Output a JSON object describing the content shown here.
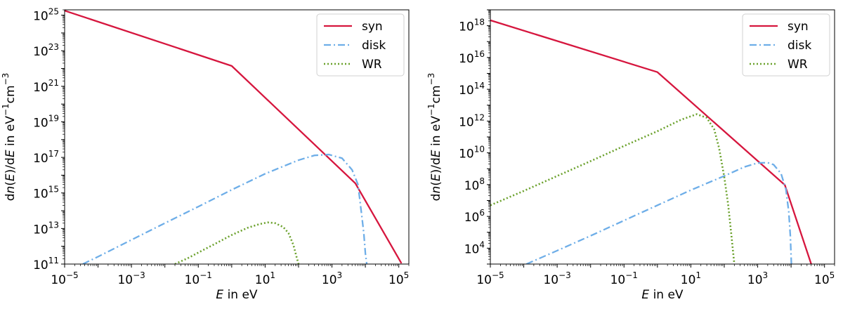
{
  "chart_data": [
    {
      "type": "line",
      "xscale": "log",
      "yscale": "log",
      "xlim": [
        1e-05,
        200000.0
      ],
      "ylim": [
        100000000000.0,
        2e+25
      ],
      "xlabel_var": "E",
      "xlabel_rest": " in eV",
      "ylabel_parts": [
        "d",
        "n",
        "(",
        "E",
        ")/d",
        "E",
        " in eV",
        "−1",
        "cm",
        "−3"
      ],
      "xticks": [
        {
          "base": "10",
          "exp": "−5",
          "value": 1e-05
        },
        {
          "base": "10",
          "exp": "−3",
          "value": 0.001
        },
        {
          "base": "10",
          "exp": "−1",
          "value": 0.1
        },
        {
          "base": "10",
          "exp": "1",
          "value": 10.0
        },
        {
          "base": "10",
          "exp": "3",
          "value": 1000.0
        },
        {
          "base": "10",
          "exp": "5",
          "value": 100000.0
        }
      ],
      "yticks": [
        {
          "base": "10",
          "exp": "11",
          "value": 100000000000.0
        },
        {
          "base": "10",
          "exp": "13",
          "value": 10000000000000.0
        },
        {
          "base": "10",
          "exp": "15",
          "value": 1000000000000000.0
        },
        {
          "base": "10",
          "exp": "17",
          "value": 1e+17
        },
        {
          "base": "10",
          "exp": "19",
          "value": 1e+19
        },
        {
          "base": "10",
          "exp": "21",
          "value": 1e+21
        },
        {
          "base": "10",
          "exp": "23",
          "value": 1e+23
        },
        {
          "base": "10",
          "exp": "25",
          "value": 1e+25
        }
      ],
      "legend": "top-right",
      "series": [
        {
          "name": "syn",
          "color": "#d6163e",
          "dash": "solid",
          "points": [
            [
              1e-05,
              1.8e+25
            ],
            [
              1.0,
              1.4e+22
            ],
            [
              5000.0,
              3500000000000000.0
            ],
            [
              120000.0,
              110000000000.0
            ]
          ]
        },
        {
          "name": "disk",
          "color": "#6eaee8",
          "dash": "dashdot",
          "points": [
            [
              3.5e-05,
              100000000000.0
            ],
            [
              0.0001,
              260000000000.0
            ],
            [
              0.001,
              2300000000000.0
            ],
            [
              0.01,
              20000000000000.0
            ],
            [
              0.1,
              170000000000000.0
            ],
            [
              1.0,
              1500000000000000.0
            ],
            [
              10,
              1.2e+16
            ],
            [
              100,
              7e+16
            ],
            [
              300,
              1.3e+17
            ],
            [
              800,
              1.45e+17
            ],
            [
              2000,
              9e+16
            ],
            [
              4000,
              2e+16
            ],
            [
              6000,
              3000000000000000.0
            ],
            [
              8000,
              35000000000000.0
            ],
            [
              9000,
              5000000000000.0
            ],
            [
              10000.0,
              400000000000.0
            ],
            [
              11000.0,
              100000000000.0
            ]
          ]
        },
        {
          "name": "WR",
          "color": "#6ba12c",
          "dash": "dotted",
          "points": [
            [
              0.02,
              100000000000.0
            ],
            [
              0.05,
              220000000000.0
            ],
            [
              0.1,
              440000000000.0
            ],
            [
              0.3,
              1300000000000.0
            ],
            [
              1.0,
              4300000000000.0
            ],
            [
              3.0,
              11000000000000.0
            ],
            [
              7.0,
              18000000000000.0
            ],
            [
              12,
              22000000000000.0
            ],
            [
              20,
              20000000000000.0
            ],
            [
              35,
              12000000000000.0
            ],
            [
              50,
              5500000000000.0
            ],
            [
              70,
              1200000000000.0
            ],
            [
              85,
              300000000000.0
            ],
            [
              100,
              100000000000.0
            ]
          ]
        }
      ]
    },
    {
      "type": "line",
      "xscale": "log",
      "yscale": "log",
      "xlim": [
        1e-05,
        200000.0
      ],
      "ylim": [
        1000.0,
        1e+19
      ],
      "xlabel_var": "E",
      "xlabel_rest": " in eV",
      "ylabel_parts": [
        "d",
        "n",
        "(",
        "E",
        ")/d",
        "E",
        " in eV",
        "−1",
        "cm",
        "−3"
      ],
      "xticks": [
        {
          "base": "10",
          "exp": "−5",
          "value": 1e-05
        },
        {
          "base": "10",
          "exp": "−3",
          "value": 0.001
        },
        {
          "base": "10",
          "exp": "−1",
          "value": 0.1
        },
        {
          "base": "10",
          "exp": "1",
          "value": 10.0
        },
        {
          "base": "10",
          "exp": "3",
          "value": 1000.0
        },
        {
          "base": "10",
          "exp": "5",
          "value": 100000.0
        }
      ],
      "yticks": [
        {
          "base": "10",
          "exp": "4",
          "value": 10000.0
        },
        {
          "base": "10",
          "exp": "6",
          "value": 1000000.0
        },
        {
          "base": "10",
          "exp": "8",
          "value": 100000000.0
        },
        {
          "base": "10",
          "exp": "10",
          "value": 10000000000.0
        },
        {
          "base": "10",
          "exp": "12",
          "value": 1000000000000.0
        },
        {
          "base": "10",
          "exp": "14",
          "value": 100000000000000.0
        },
        {
          "base": "10",
          "exp": "16",
          "value": 1e+16
        },
        {
          "base": "10",
          "exp": "18",
          "value": 1e+18
        }
      ],
      "legend": "top-right",
      "series": [
        {
          "name": "syn",
          "color": "#d6163e",
          "dash": "solid",
          "points": [
            [
              1e-05,
              2.2e+18
            ],
            [
              1.0,
              1200000000000000.0
            ],
            [
              6500.0,
              95000000.0
            ],
            [
              40000.0,
              1000.0
            ]
          ]
        },
        {
          "name": "disk",
          "color": "#6eaee8",
          "dash": "dashdot",
          "points": [
            [
              0.00012,
              1000.0
            ],
            [
              0.001,
              7000.0
            ],
            [
              0.01,
              60000.0
            ],
            [
              0.1,
              550000.0
            ],
            [
              1.0,
              5000000.0
            ],
            [
              10,
              45000000.0
            ],
            [
              100,
              350000000.0
            ],
            [
              400,
              1300000000.0
            ],
            [
              1000,
              2300000000.0
            ],
            [
              2000,
              2400000000.0
            ],
            [
              3000,
              1800000000.0
            ],
            [
              5000,
              500000000.0
            ],
            [
              7000,
              50000000.0
            ],
            [
              8500,
              2000000.0
            ],
            [
              9500,
              60000.0
            ],
            [
              10200.0,
              1000.0
            ]
          ]
        },
        {
          "name": "WR",
          "color": "#6ba12c",
          "dash": "dotted",
          "points": [
            [
              1e-05,
              5000000.0
            ],
            [
              0.0001,
              40000000.0
            ],
            [
              0.001,
              350000000.0
            ],
            [
              0.01,
              3000000000.0
            ],
            [
              0.1,
              27000000000.0
            ],
            [
              1.0,
              230000000000.0
            ],
            [
              5.0,
              1200000000000.0
            ],
            [
              15,
              2700000000000.0
            ],
            [
              30,
              1600000000000.0
            ],
            [
              50,
              300000000000.0
            ],
            [
              70,
              20000000000.0
            ],
            [
              100,
              300000000.0
            ],
            [
              130,
              6000000.0
            ],
            [
              160,
              100000.0
            ],
            [
              200,
              1000.0
            ]
          ]
        }
      ]
    }
  ]
}
